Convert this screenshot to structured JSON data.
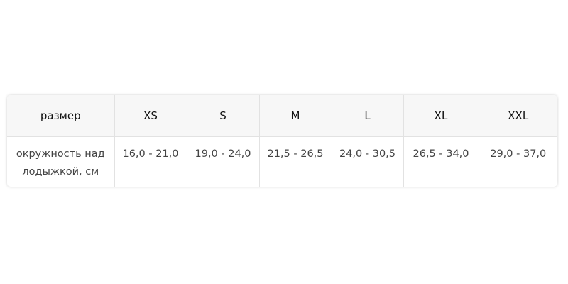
{
  "table": {
    "headers": [
      "размер",
      "XS",
      "S",
      "M",
      "L",
      "XL",
      "XXL"
    ],
    "rows": [
      [
        "окружность над лодыжкой, см",
        "16,0 - 21,0",
        "19,0 - 24,0",
        "21,5 - 26,5",
        "24,0 - 30,5",
        "26,5 - 34,0",
        "29,0 - 37,0"
      ]
    ]
  }
}
